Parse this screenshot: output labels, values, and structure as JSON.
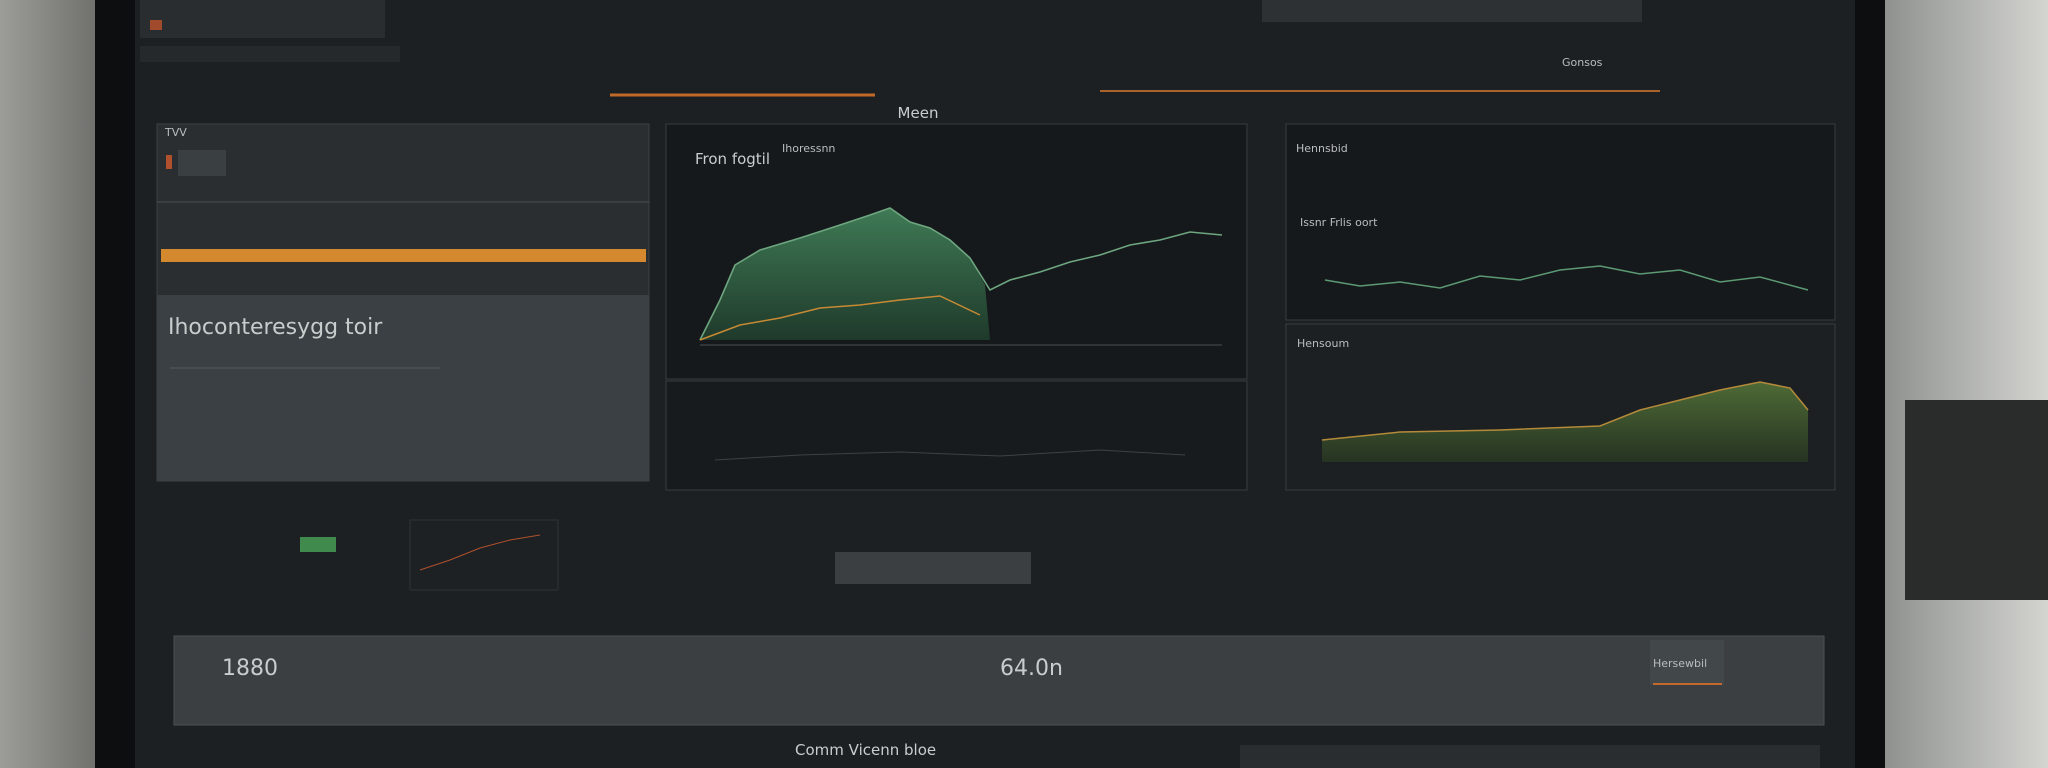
{
  "header": {
    "title": "Meen",
    "search": "Gonsos"
  },
  "left_panel": {
    "label": "TVV",
    "heading": "Ihoconteresygg toir"
  },
  "center_panel": {
    "title": "Fron fogtil",
    "subtitle": "Ihoressnn"
  },
  "right_panel": {
    "title": "Hennsbid",
    "chart_label": "Issnr Frlis oort",
    "lower_label": "Hensoum"
  },
  "stats": {
    "left": "1880",
    "center": "64.0n"
  },
  "footer": {
    "title": "Comm Vicenn bloe",
    "tab": "Hersewbil"
  }
}
